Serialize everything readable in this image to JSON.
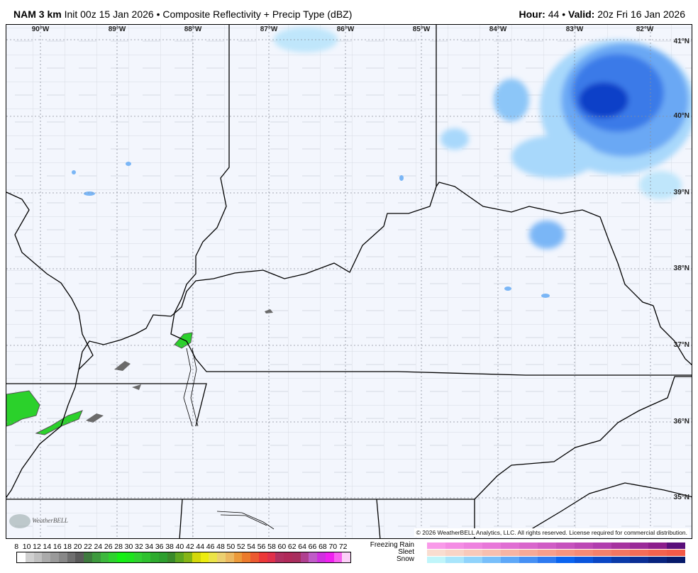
{
  "header": {
    "model": "NAM 3 km",
    "init": "Init 00z 15 Jan 2026",
    "separator": "•",
    "product": "Composite Reflectivity + Precip Type (dBZ)",
    "hour_label": "Hour:",
    "hour": "44",
    "valid_label": "Valid:",
    "valid": "20z Fri 16 Jan 2026"
  },
  "map": {
    "lon_labels": [
      "90°W",
      "89°W",
      "88°W",
      "87°W",
      "86°W",
      "85°W",
      "84°W",
      "83°W",
      "82°W"
    ],
    "lat_labels": [
      "41°N",
      "40°N",
      "39°N",
      "38°N",
      "37°N",
      "36°N",
      "35°N"
    ],
    "copyright": "© 2026 WeatherBELL Analytics, LLC. All rights reserved. License required for commercial distribution.",
    "logo": "WeatherBELL",
    "colors": {
      "background": "#f3f6fd",
      "border": "#000000",
      "county": "#c8ccd6",
      "snow_light": "#a8d8fb",
      "snow_mid": "#4a90f0",
      "snow_heavy": "#0a3fc8",
      "rain": "#2bd12b",
      "mixed_gray": "#6a6a6a"
    }
  },
  "legend": {
    "dbz_ticks": [
      "8",
      "10",
      "12",
      "14",
      "16",
      "18",
      "20",
      "22",
      "24",
      "26",
      "28",
      "30",
      "32",
      "34",
      "36",
      "38",
      "40",
      "42",
      "44",
      "46",
      "48",
      "50",
      "52",
      "54",
      "56",
      "58",
      "60",
      "62",
      "64",
      "66",
      "68",
      "70",
      "72"
    ],
    "dbz_colors": [
      "#ffffff",
      "#d0d0d0",
      "#c0c0c0",
      "#ababab",
      "#9a9a9a",
      "#888",
      "#6f6f6f",
      "#5a5a5a",
      "#3f7a3f",
      "#3d9a3d",
      "#3db83d",
      "#2ed22e",
      "#14f014",
      "#1de51d",
      "#30d030",
      "#2fc12f",
      "#2eab2e",
      "#2e9f2e",
      "#3a8a2a",
      "#5ea61f",
      "#86b515",
      "#d4d80a",
      "#ecec10",
      "#ece448",
      "#ecd070",
      "#ecb860",
      "#ec9a3a",
      "#ec7b2c",
      "#ec5a30",
      "#ec3838",
      "#e0304a",
      "#b03060",
      "#b02a5a",
      "#a82e5e",
      "#b04090",
      "#c05cc8",
      "#d030e0",
      "#f020f0",
      "#f860f0",
      "#fcd0f8"
    ],
    "freezing_rain_label": "Freezing Rain",
    "sleet_label": "Sleet",
    "snow_label": "Snow",
    "freezing_rain_colors": [
      "#f99ae9",
      "#f48ce4",
      "#ee82df",
      "#e878d9",
      "#e06ed3",
      "#d966cc",
      "#d05cc5",
      "#c652bd",
      "#bc48b5",
      "#b13eae",
      "#a6339f",
      "#9a2a98",
      "#8c1e8c",
      "#5a0f7a"
    ],
    "sleet_colors": [
      "#f9ddd0",
      "#f8d4c6",
      "#f8c9ba",
      "#f7bfb0",
      "#f7b4a4",
      "#f6a998",
      "#f69e8c",
      "#f59480",
      "#f58a76",
      "#f4806c",
      "#f47662",
      "#f36c58",
      "#f3624e",
      "#f25a48"
    ],
    "snow_colors": [
      "#c0f5fa",
      "#a8e5fb",
      "#90d3fb",
      "#78bffa",
      "#5ea8f8",
      "#4690f4",
      "#2e7af0",
      "#0a64f0",
      "#0a55dc",
      "#0a46c4",
      "#0a3aa8",
      "#0a2e94",
      "#08247e",
      "#061a6a"
    ]
  }
}
